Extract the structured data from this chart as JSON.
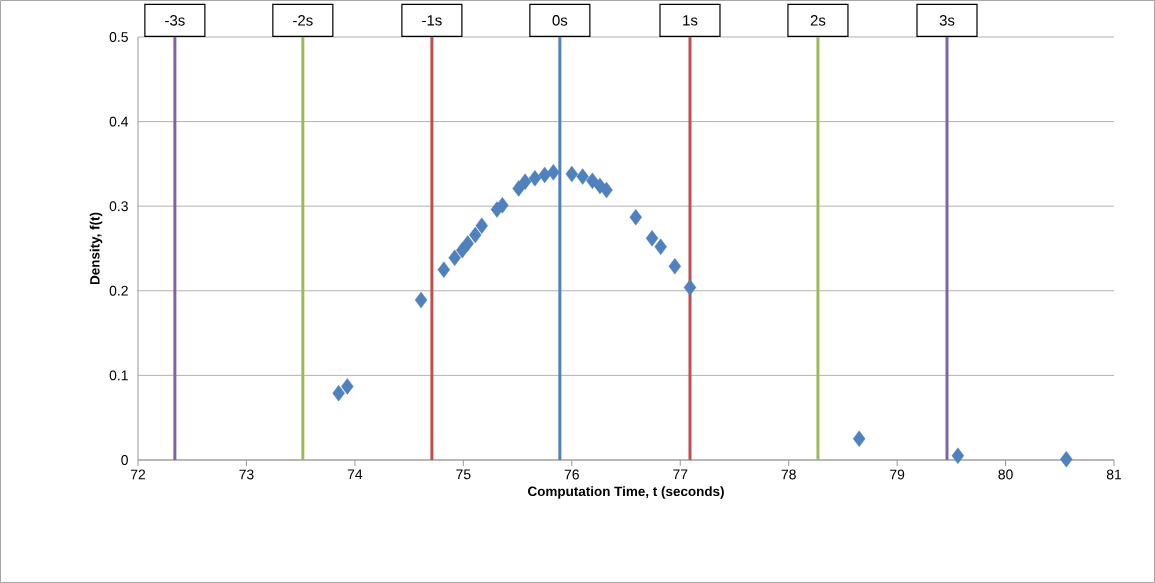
{
  "chart_data": {
    "type": "scatter",
    "xlabel": "Computation Time, t (seconds)",
    "ylabel": "Density, f(t)",
    "xlim": [
      72,
      81
    ],
    "ylim": [
      0,
      0.5
    ],
    "xticks": [
      72,
      73,
      74,
      75,
      76,
      77,
      78,
      79,
      80,
      81
    ],
    "yticks": [
      0,
      0.1,
      0.2,
      0.3,
      0.4,
      0.5
    ],
    "grid": "y",
    "marker": "diamond",
    "series": [
      {
        "color": "#4f81bd",
        "x": [
          73.85,
          73.93,
          74.61,
          74.82,
          74.92,
          74.99,
          75.04,
          75.11,
          75.17,
          75.31,
          75.36,
          75.51,
          75.57,
          75.66,
          75.75,
          75.83,
          76.0,
          76.1,
          76.19,
          76.26,
          76.32,
          76.59,
          76.74,
          76.82,
          76.95,
          77.09,
          78.65,
          79.56,
          80.56
        ],
        "values": [
          0.079,
          0.087,
          0.189,
          0.225,
          0.239,
          0.248,
          0.256,
          0.266,
          0.277,
          0.296,
          0.301,
          0.321,
          0.329,
          0.333,
          0.337,
          0.34,
          0.338,
          0.335,
          0.33,
          0.324,
          0.319,
          0.287,
          0.262,
          0.252,
          0.229,
          0.204,
          0.025,
          0.005,
          0.001
        ]
      }
    ],
    "ref_lines": [
      {
        "axis": "x",
        "value": 72.34,
        "label": "-3s",
        "color": "#8064a2"
      },
      {
        "axis": "x",
        "value": 73.52,
        "label": "-2s",
        "color": "#9bbb59"
      },
      {
        "axis": "x",
        "value": 74.71,
        "label": "-1s",
        "color": "#c0504d"
      },
      {
        "axis": "x",
        "value": 75.89,
        "label": "0s",
        "color": "#4f81bd"
      },
      {
        "axis": "x",
        "value": 77.09,
        "label": "1s",
        "color": "#c0504d"
      },
      {
        "axis": "x",
        "value": 78.27,
        "label": "2s",
        "color": "#9bbb59"
      },
      {
        "axis": "x",
        "value": 79.46,
        "label": "3s",
        "color": "#8064a2"
      }
    ]
  }
}
